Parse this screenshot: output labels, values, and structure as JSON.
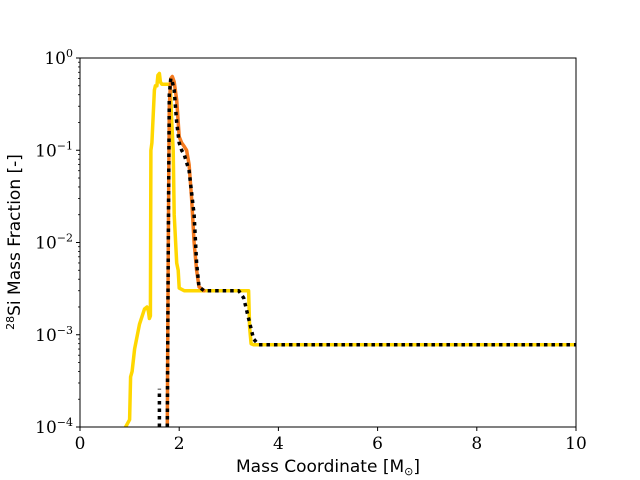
{
  "chart_data": {
    "type": "line",
    "title": "",
    "xlabel": "Mass Coordinate [M",
    "xlabel_symbol": "⊙",
    "xlabel_close": "]",
    "ylabel_sup": "28",
    "ylabel": "Si Mass Fraction [-]",
    "xlim": [
      0,
      10
    ],
    "ylim": [
      0.0001,
      1
    ],
    "yscale": "log",
    "grid": false,
    "x_ticks": [
      0,
      2,
      4,
      6,
      8,
      10
    ],
    "x_tick_labels": [
      "0",
      "2",
      "4",
      "6",
      "8",
      "10"
    ],
    "y_ticks": [
      0.0001,
      0.001,
      0.01,
      0.1,
      1
    ],
    "y_tick_labels": [
      {
        "base": "10",
        "exp": "−4"
      },
      {
        "base": "10",
        "exp": "−3"
      },
      {
        "base": "10",
        "exp": "−2"
      },
      {
        "base": "10",
        "exp": "−1"
      },
      {
        "base": "10",
        "exp": "0"
      }
    ],
    "series": [
      {
        "color": "#ffd700",
        "style": "solid",
        "points": [
          [
            0.92,
            0.0001
          ],
          [
            1.0,
            0.00012
          ],
          [
            1.02,
            0.00035
          ],
          [
            1.05,
            0.0004
          ],
          [
            1.1,
            0.0007
          ],
          [
            1.2,
            0.0013
          ],
          [
            1.3,
            0.0019
          ],
          [
            1.35,
            0.002
          ],
          [
            1.38,
            0.0018
          ],
          [
            1.4,
            0.0015
          ],
          [
            1.42,
            0.0016
          ],
          [
            1.43,
            0.1
          ],
          [
            1.45,
            0.12
          ],
          [
            1.5,
            0.45
          ],
          [
            1.52,
            0.5
          ],
          [
            1.55,
            0.5
          ],
          [
            1.57,
            0.65
          ],
          [
            1.6,
            0.68
          ],
          [
            1.62,
            0.55
          ],
          [
            1.65,
            0.52
          ],
          [
            1.7,
            0.52
          ],
          [
            1.75,
            0.52
          ],
          [
            1.8,
            0.52
          ],
          [
            1.82,
            0.48
          ],
          [
            1.85,
            0.2
          ],
          [
            1.88,
            0.1
          ],
          [
            1.9,
            0.02
          ],
          [
            1.95,
            0.006
          ],
          [
            1.98,
            0.005
          ],
          [
            2.0,
            0.0032
          ],
          [
            2.1,
            0.003
          ],
          [
            2.5,
            0.003
          ],
          [
            3.0,
            0.003
          ],
          [
            3.4,
            0.003
          ],
          [
            3.42,
            0.0012
          ],
          [
            3.45,
            0.0008
          ],
          [
            3.5,
            0.00078
          ],
          [
            10.0,
            0.00078
          ]
        ]
      },
      {
        "color": "#f47a1f",
        "style": "solid",
        "points": [
          [
            1.76,
            0.0001
          ],
          [
            1.78,
            0.01
          ],
          [
            1.8,
            0.3
          ],
          [
            1.83,
            0.6
          ],
          [
            1.86,
            0.63
          ],
          [
            1.9,
            0.55
          ],
          [
            1.95,
            0.35
          ],
          [
            2.0,
            0.14
          ],
          [
            2.05,
            0.12
          ],
          [
            2.1,
            0.11
          ],
          [
            2.15,
            0.1
          ],
          [
            2.2,
            0.07
          ],
          [
            2.25,
            0.03
          ],
          [
            2.3,
            0.01
          ],
          [
            2.35,
            0.005
          ],
          [
            2.4,
            0.0033
          ],
          [
            2.5,
            0.003
          ]
        ]
      },
      {
        "color": "#000000",
        "style": "dotted",
        "points_a": [
          [
            1.6,
            0.0001
          ],
          [
            1.6,
            0.00026
          ]
        ],
        "points": [
          [
            1.76,
            0.0001
          ],
          [
            1.78,
            0.01
          ],
          [
            1.8,
            0.4
          ],
          [
            1.83,
            0.6
          ],
          [
            1.86,
            0.55
          ],
          [
            1.9,
            0.45
          ],
          [
            1.95,
            0.2
          ],
          [
            2.0,
            0.12
          ],
          [
            2.05,
            0.1
          ],
          [
            2.1,
            0.09
          ],
          [
            2.2,
            0.06
          ],
          [
            2.3,
            0.02
          ],
          [
            2.35,
            0.006
          ],
          [
            2.4,
            0.0033
          ],
          [
            2.5,
            0.003
          ],
          [
            3.2,
            0.003
          ],
          [
            3.3,
            0.0025
          ],
          [
            3.4,
            0.0015
          ],
          [
            3.5,
            0.0009
          ],
          [
            3.6,
            0.00078
          ],
          [
            10.0,
            0.00078
          ]
        ]
      }
    ]
  }
}
